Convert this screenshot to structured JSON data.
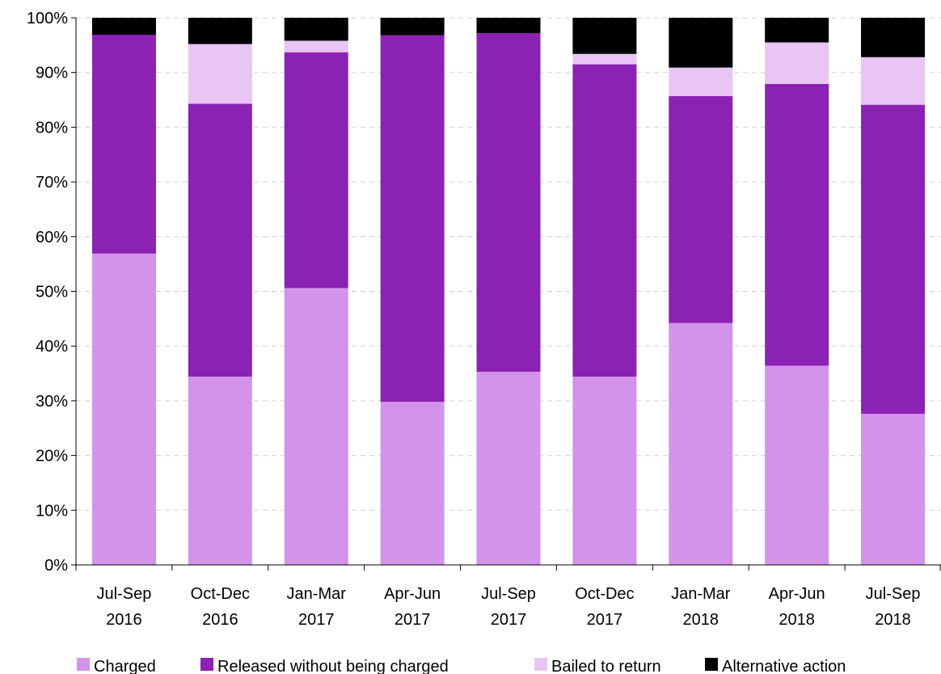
{
  "chart_data": {
    "type": "bar",
    "stacked": true,
    "percent_stacked": true,
    "categories": [
      [
        "Jul-Sep",
        "2016"
      ],
      [
        "Oct-Dec",
        "2016"
      ],
      [
        "Jan-Mar",
        "2017"
      ],
      [
        "Apr-Jun",
        "2017"
      ],
      [
        "Jul-Sep",
        "2017"
      ],
      [
        "Oct-Dec",
        "2017"
      ],
      [
        "Jan-Mar",
        "2018"
      ],
      [
        "Apr-Jun",
        "2018"
      ],
      [
        "Jul-Sep",
        "2018"
      ]
    ],
    "series": [
      {
        "name": "Charged",
        "color": "#d393ea",
        "values": [
          56.9,
          34.4,
          50.6,
          29.8,
          35.3,
          34.4,
          44.2,
          36.4,
          27.6
        ]
      },
      {
        "name": "Released without being charged",
        "color": "#8c22b3",
        "values": [
          40.0,
          49.9,
          43.1,
          67.0,
          61.9,
          57.1,
          41.5,
          51.5,
          56.5
        ]
      },
      {
        "name": "Bailed to return",
        "color": "#e8c5f2",
        "values": [
          0.0,
          10.9,
          2.1,
          0.0,
          0.0,
          1.9,
          5.2,
          7.6,
          8.7
        ]
      },
      {
        "name": "Alternative action",
        "color": "#000000",
        "values": [
          3.1,
          4.8,
          4.2,
          3.2,
          2.8,
          6.6,
          9.1,
          4.5,
          7.2
        ]
      }
    ],
    "ylim": [
      0,
      100
    ],
    "yticks": [
      "0%",
      "10%",
      "20%",
      "30%",
      "40%",
      "50%",
      "60%",
      "70%",
      "80%",
      "90%",
      "100%"
    ],
    "grid": true,
    "legend_position": "bottom"
  }
}
